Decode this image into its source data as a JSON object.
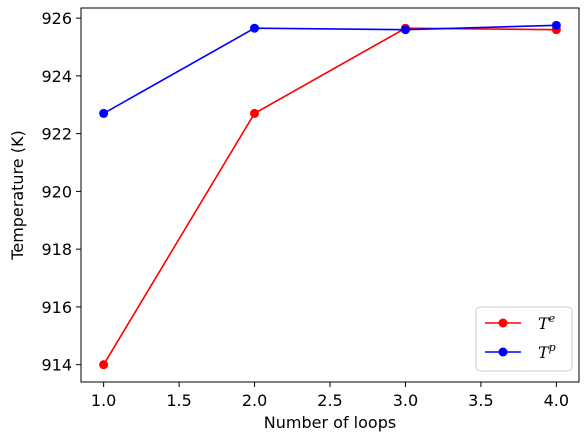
{
  "chart_data": {
    "type": "line",
    "xlabel": "Number of loops",
    "ylabel": "Temperature (K)",
    "xlim": [
      0.85,
      4.15
    ],
    "ylim": [
      913.4,
      926.35
    ],
    "xticks": [
      1.0,
      1.5,
      2.0,
      2.5,
      3.0,
      3.5,
      4.0
    ],
    "xtick_labels": [
      "1.0",
      "1.5",
      "2.0",
      "2.5",
      "3.0",
      "3.5",
      "4.0"
    ],
    "yticks": [
      914,
      916,
      918,
      920,
      922,
      924,
      926
    ],
    "ytick_labels": [
      "914",
      "916",
      "918",
      "920",
      "922",
      "924",
      "926"
    ],
    "x": [
      1,
      2,
      3,
      4
    ],
    "series": [
      {
        "name_base": "T",
        "name_sup": "e",
        "color": "#ff0000",
        "values": [
          914.0,
          922.7,
          925.65,
          925.6
        ]
      },
      {
        "name_base": "T",
        "name_sup": "p",
        "color": "#0000ff",
        "values": [
          922.7,
          925.65,
          925.6,
          925.75
        ]
      }
    ],
    "legend_position": "lower-right",
    "grid": false
  }
}
